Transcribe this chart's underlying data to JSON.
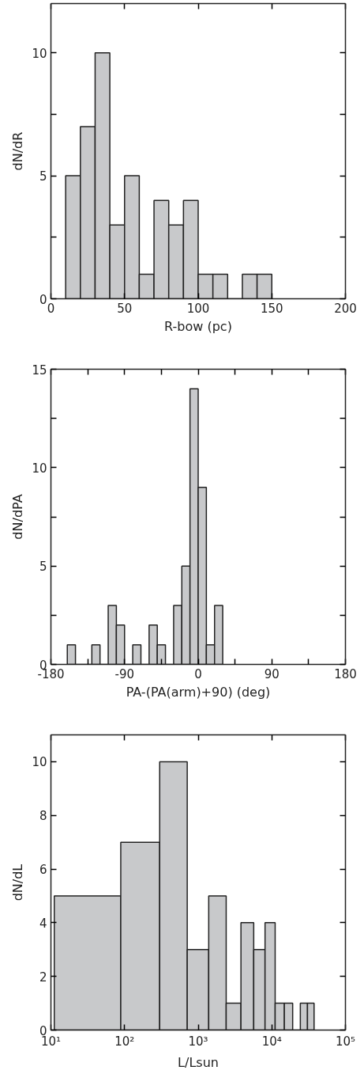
{
  "chart_data": [
    {
      "type": "histogram",
      "xlabel": "R-bow (pc)",
      "ylabel": "dN/dR",
      "color": "#c8c9cb",
      "grid": false,
      "bins": [
        10,
        20,
        30,
        40,
        50,
        60,
        70,
        80,
        90,
        100,
        110,
        120,
        130,
        140,
        150
      ],
      "values": [
        5,
        7,
        10,
        3,
        5,
        1,
        4,
        3,
        4,
        1,
        1,
        0,
        1,
        1
      ],
      "xlim": [
        0,
        200
      ],
      "xticks": [
        0,
        50,
        100,
        150,
        200
      ],
      "ylim": [
        0,
        12
      ],
      "yticks": [
        0,
        {
          "value": 2.5,
          "label": null
        },
        5,
        {
          "value": 7.5,
          "label": null
        },
        10
      ]
    },
    {
      "type": "histogram",
      "xlabel": "PA-(PA(arm)+90) (deg)",
      "ylabel": "dN/dPA",
      "color": "#c8c9cb",
      "grid": false,
      "bins": [
        -160,
        -150,
        -140,
        -130,
        -120,
        -110,
        -100,
        -90,
        -80,
        -70,
        -60,
        -50,
        -40,
        -30,
        -20,
        -10,
        0,
        10,
        20,
        30
      ],
      "values": [
        1,
        0,
        0,
        1,
        0,
        3,
        2,
        0,
        1,
        0,
        2,
        1,
        0,
        3,
        5,
        14,
        9,
        1,
        3
      ],
      "xlim": [
        -180,
        180
      ],
      "xticks": [
        -180,
        {
          "value": -135,
          "label": null
        },
        -90,
        {
          "value": -45,
          "label": null
        },
        0,
        {
          "value": 45,
          "label": null
        },
        90,
        {
          "value": 135,
          "label": null
        },
        180
      ],
      "ylim": [
        0,
        15
      ],
      "yticks": [
        0,
        {
          "value": 2.5,
          "label": null
        },
        5,
        {
          "value": 7.5,
          "label": null
        },
        10,
        {
          "value": 12.5,
          "label": null
        },
        15
      ]
    },
    {
      "type": "histogram",
      "xlabel": "L/Lsun",
      "ylabel": "dN/dL",
      "color": "#c8c9cb",
      "grid": false,
      "log": "x",
      "bins": [
        11.1,
        88.8,
        300,
        710,
        1390,
        2400,
        3810,
        5680,
        8090,
        11100,
        14800,
        19200,
        24400,
        30500,
        37500
      ],
      "values": [
        5,
        7,
        10,
        3,
        5,
        1,
        4,
        3,
        4,
        1,
        1,
        0,
        1,
        1
      ],
      "xlim": [
        10,
        100000
      ],
      "xticks": [
        {
          "value": 10,
          "label": "10¹"
        },
        {
          "value": 100,
          "label": "10²"
        },
        {
          "value": 1000,
          "label": "10³"
        },
        {
          "value": 10000,
          "label": "10⁴"
        },
        {
          "value": 100000,
          "label": "10⁵"
        }
      ],
      "ylim": [
        0,
        11
      ],
      "yticks": [
        0,
        2,
        4,
        6,
        8,
        10
      ]
    }
  ]
}
